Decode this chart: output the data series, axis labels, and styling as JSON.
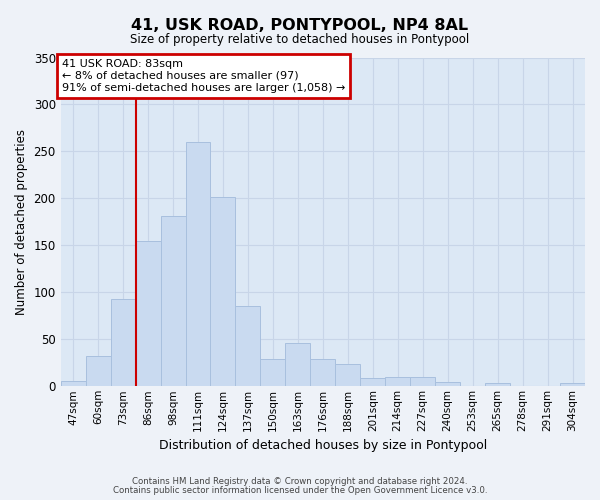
{
  "title": "41, USK ROAD, PONTYPOOL, NP4 8AL",
  "subtitle": "Size of property relative to detached houses in Pontypool",
  "xlabel": "Distribution of detached houses by size in Pontypool",
  "ylabel": "Number of detached properties",
  "bar_labels": [
    "47sqm",
    "60sqm",
    "73sqm",
    "86sqm",
    "98sqm",
    "111sqm",
    "124sqm",
    "137sqm",
    "150sqm",
    "163sqm",
    "176sqm",
    "188sqm",
    "201sqm",
    "214sqm",
    "227sqm",
    "240sqm",
    "253sqm",
    "265sqm",
    "278sqm",
    "291sqm",
    "304sqm"
  ],
  "bar_values": [
    6,
    32,
    93,
    155,
    181,
    260,
    202,
    85,
    29,
    46,
    29,
    24,
    9,
    10,
    10,
    5,
    0,
    4,
    0,
    0,
    3
  ],
  "bar_color": "#c9daf0",
  "bar_edge_color": "#a8c0de",
  "property_line_index": 3,
  "annotation_title": "41 USK ROAD: 83sqm",
  "annotation_line1": "← 8% of detached houses are smaller (97)",
  "annotation_line2": "91% of semi-detached houses are larger (1,058) →",
  "annotation_box_facecolor": "#ffffff",
  "annotation_box_edgecolor": "#cc0000",
  "ylim": [
    0,
    350
  ],
  "yticks": [
    0,
    50,
    100,
    150,
    200,
    250,
    300,
    350
  ],
  "footer1": "Contains HM Land Registry data © Crown copyright and database right 2024.",
  "footer2": "Contains public sector information licensed under the Open Government Licence v3.0.",
  "fig_facecolor": "#eef2f8",
  "plot_facecolor": "#dce8f5",
  "grid_color": "#c8d5e8"
}
